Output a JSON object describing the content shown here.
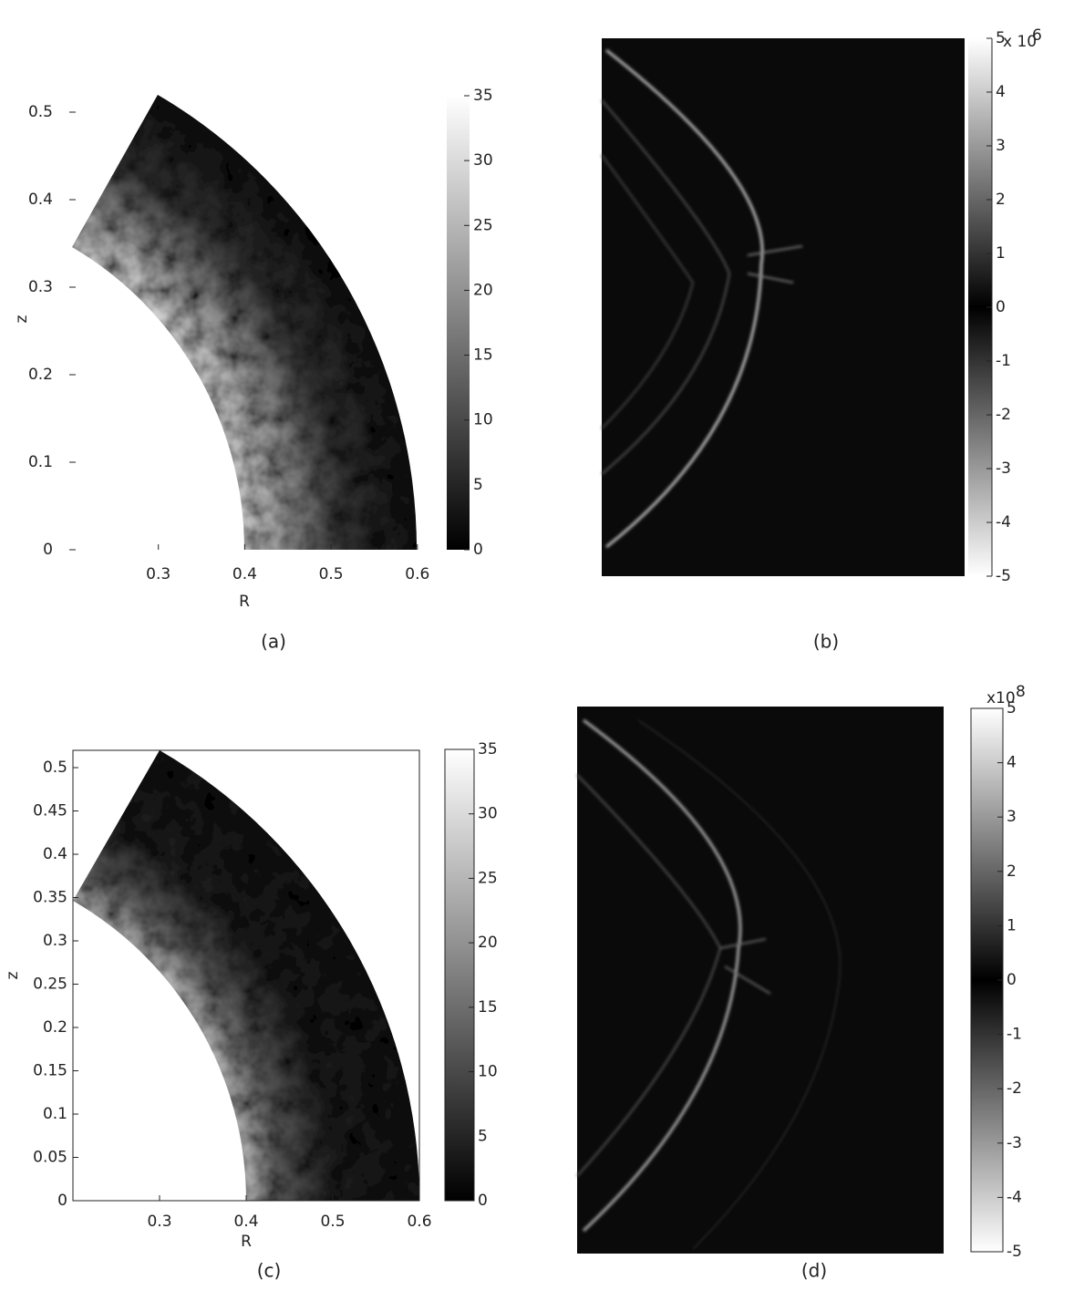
{
  "panels": [
    {
      "caption": "(a)",
      "x_label": "R",
      "y_label": "z",
      "x_ticks": [
        0.3,
        0.4,
        0.5,
        0.6
      ],
      "y_ticks": [
        0,
        0.1,
        0.2,
        0.3,
        0.4,
        0.5
      ],
      "colorbar_ticks": [
        0,
        5,
        10,
        15,
        20,
        25,
        30,
        35
      ]
    },
    {
      "caption": "(b)",
      "colorbar_ticks": [
        -5,
        -4,
        -3,
        -2,
        -1,
        0,
        1,
        2,
        3,
        4,
        5
      ],
      "colorbar_exponent_base": "x 10",
      "colorbar_exponent": "6"
    },
    {
      "caption": "(c)",
      "x_label": "R",
      "y_label": "z",
      "x_ticks": [
        0.3,
        0.4,
        0.5,
        0.6
      ],
      "y_ticks": [
        0,
        0.05,
        0.1,
        0.15,
        0.2,
        0.25,
        0.3,
        0.35,
        0.4,
        0.45,
        0.5
      ],
      "colorbar_ticks": [
        0,
        5,
        10,
        15,
        20,
        25,
        30,
        35
      ]
    },
    {
      "caption": "(d)",
      "colorbar_ticks": [
        -5,
        -4,
        -3,
        -2,
        -1,
        0,
        1,
        2,
        3,
        4,
        5
      ],
      "colorbar_exponent_base": "x10",
      "colorbar_exponent": "8"
    }
  ]
}
